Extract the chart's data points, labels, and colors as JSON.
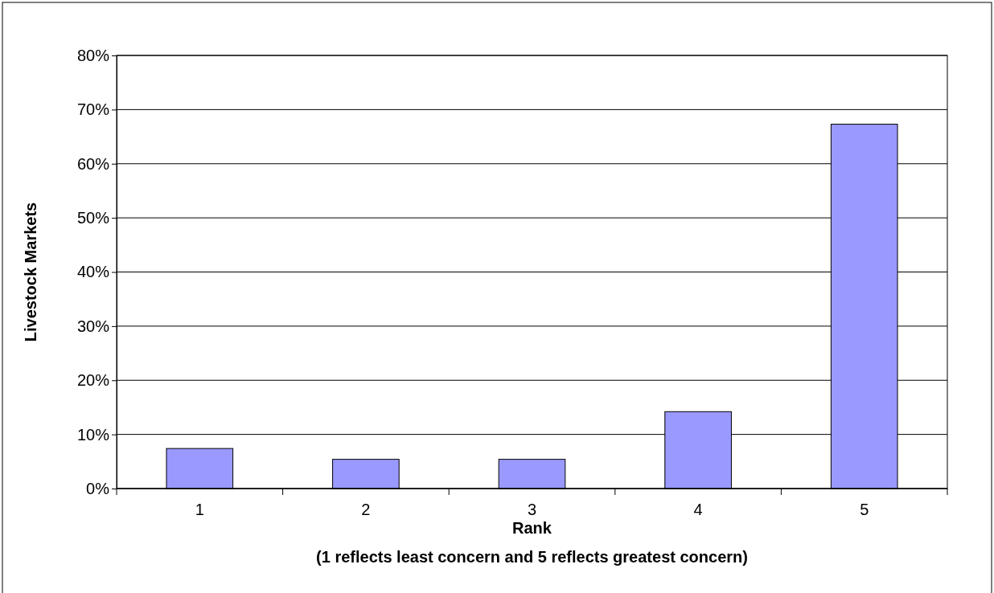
{
  "chart_data": {
    "type": "bar",
    "xlabel": "Rank",
    "ylabel": "Livestock Markets",
    "annotations": [
      "(1 reflects least concern and 5 reflects greatest concern)"
    ],
    "categories": [
      "1",
      "2",
      "3",
      "4",
      "5"
    ],
    "values": [
      7.4,
      5.4,
      5.4,
      14.2,
      67.3
    ],
    "color": "#9999ff",
    "ylim": [
      0,
      80
    ],
    "yticks": [
      {
        "value": 0,
        "label": "0%"
      },
      {
        "value": 10,
        "label": "10%"
      },
      {
        "value": 20,
        "label": "20%"
      },
      {
        "value": 30,
        "label": "30%"
      },
      {
        "value": 40,
        "label": "40%"
      },
      {
        "value": 50,
        "label": "50%"
      },
      {
        "value": 60,
        "label": "60%"
      },
      {
        "value": 70,
        "label": "70%"
      },
      {
        "value": 80,
        "label": "80%"
      }
    ],
    "grid": "y"
  }
}
